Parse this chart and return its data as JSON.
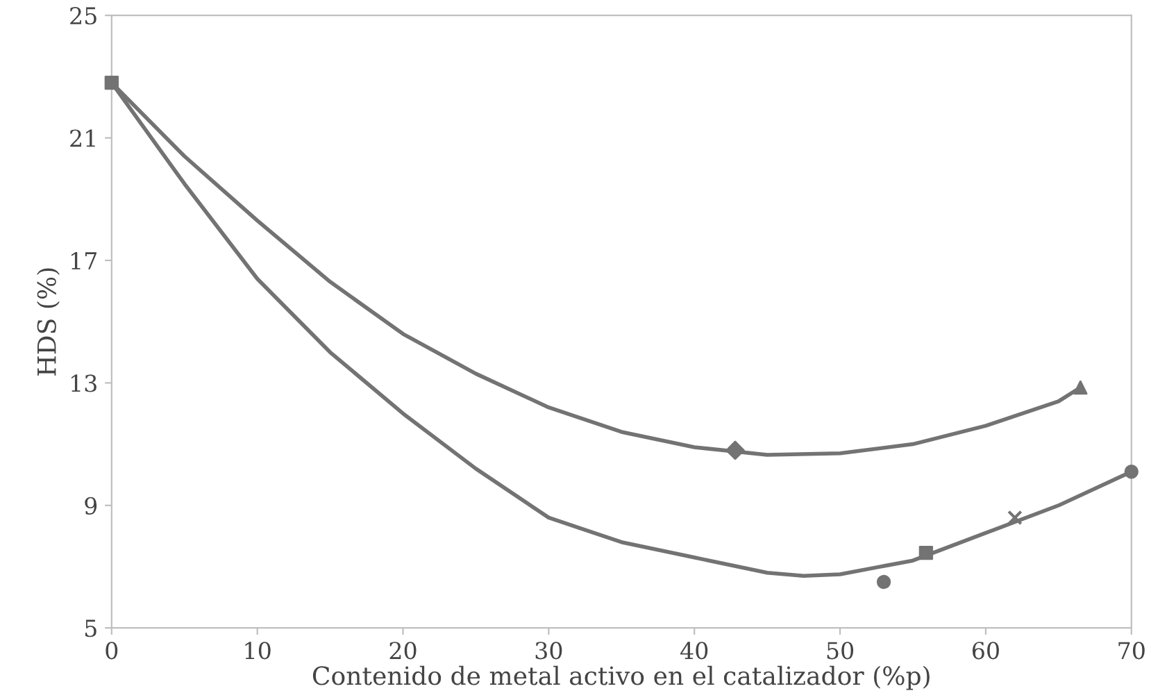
{
  "chart_data": {
    "type": "scatter",
    "xlabel": "Contenido de metal activo en el catalizador (%p)",
    "ylabel": "HDS (%)",
    "xlim": [
      0,
      70
    ],
    "xticks": [
      0,
      10,
      20,
      30,
      40,
      50,
      60,
      70
    ],
    "ylim": [
      5,
      25
    ],
    "yticks": [
      5,
      9,
      13,
      17,
      21,
      25
    ],
    "grid": false,
    "legend": false,
    "series": [
      {
        "type": "line",
        "color": "#737373",
        "marker": "none",
        "line_style": "solid",
        "x": [
          0,
          5,
          10,
          15,
          20,
          25,
          30,
          35,
          40,
          45,
          50,
          55,
          60,
          65,
          66.5
        ],
        "values": [
          22.8,
          20.4,
          18.3,
          16.3,
          14.6,
          13.3,
          12.2,
          11.4,
          10.9,
          10.65,
          10.7,
          11.0,
          11.6,
          12.4,
          12.85
        ]
      },
      {
        "type": "line",
        "color": "#737373",
        "marker": "none",
        "line_style": "solid",
        "x": [
          0,
          5,
          10,
          15,
          20,
          25,
          30,
          35,
          40,
          45,
          47.5,
          50,
          55,
          60,
          65,
          70
        ],
        "values": [
          22.8,
          19.5,
          16.4,
          14.0,
          12.0,
          10.2,
          8.6,
          7.8,
          7.3,
          6.8,
          6.7,
          6.75,
          7.2,
          8.1,
          9.0,
          10.1
        ]
      },
      {
        "color": "#737373",
        "marker": "square",
        "x": [
          0
        ],
        "values": [
          22.8
        ]
      },
      {
        "color": "#737373",
        "marker": "diamond",
        "x": [
          42.8
        ],
        "values": [
          10.8
        ]
      },
      {
        "color": "#737373",
        "marker": "triangle",
        "x": [
          66.5
        ],
        "values": [
          12.85
        ]
      },
      {
        "color": "#737373",
        "marker": "circle",
        "x": [
          53.0
        ],
        "values": [
          6.5
        ]
      },
      {
        "color": "#737373",
        "marker": "square",
        "x": [
          55.9
        ],
        "values": [
          7.45
        ]
      },
      {
        "color": "#737373",
        "marker": "cross",
        "x": [
          62.0
        ],
        "values": [
          8.6
        ]
      },
      {
        "color": "#737373",
        "marker": "circle",
        "x": [
          70
        ],
        "values": [
          10.1
        ]
      }
    ]
  }
}
